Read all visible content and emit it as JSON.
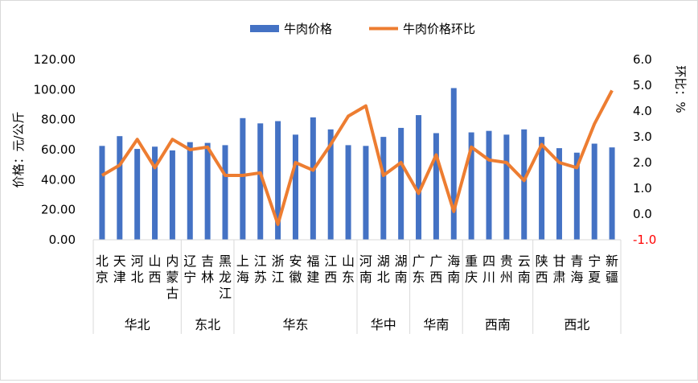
{
  "chart_data": {
    "type": "bar+line",
    "title": "",
    "legend": {
      "placement": "top-center"
    },
    "series": [
      {
        "name": "牛肉价格",
        "type": "bar",
        "axis": "left",
        "color": "#4472C4",
        "values": [
          62.5,
          69,
          60.5,
          62,
          59.5,
          65,
          64.5,
          63,
          81,
          77.5,
          79,
          70,
          81.5,
          73.5,
          63,
          62.5,
          68.5,
          74.5,
          83,
          71,
          101,
          71.5,
          72.5,
          70,
          73.5,
          68.5,
          61,
          58,
          64,
          61.5
        ]
      },
      {
        "name": "牛肉价格环比",
        "type": "line",
        "axis": "right",
        "color": "#ED7D31",
        "values": [
          1.5,
          1.9,
          2.9,
          1.8,
          2.9,
          2.5,
          2.6,
          1.5,
          1.5,
          1.6,
          -0.4,
          2.0,
          1.7,
          2.7,
          3.8,
          4.2,
          1.5,
          2.0,
          0.8,
          2.3,
          0.1,
          2.6,
          2.1,
          2.0,
          1.3,
          2.7,
          2.0,
          1.8,
          3.5,
          4.8
        ]
      }
    ],
    "categories": [
      [
        "北",
        "京"
      ],
      [
        "天",
        "津"
      ],
      [
        "河",
        "北"
      ],
      [
        "山",
        "西"
      ],
      [
        "内",
        "蒙",
        "古"
      ],
      [
        "辽",
        "宁"
      ],
      [
        "吉",
        "林"
      ],
      [
        "黑",
        "龙",
        "江"
      ],
      [
        "上",
        "海"
      ],
      [
        "江",
        "苏"
      ],
      [
        "浙",
        "江"
      ],
      [
        "安",
        "徽"
      ],
      [
        "福",
        "建"
      ],
      [
        "江",
        "西"
      ],
      [
        "山",
        "东"
      ],
      [
        "河",
        "南"
      ],
      [
        "湖",
        "北"
      ],
      [
        "湖",
        "南"
      ],
      [
        "广",
        "东"
      ],
      [
        "广",
        "西"
      ],
      [
        "海",
        "南"
      ],
      [
        "重",
        "庆"
      ],
      [
        "四",
        "川"
      ],
      [
        "贵",
        "州"
      ],
      [
        "云",
        "南"
      ],
      [
        "陕",
        "西"
      ],
      [
        "甘",
        "肃"
      ],
      [
        "青",
        "海"
      ],
      [
        "宁",
        "夏"
      ],
      [
        "新",
        "疆"
      ]
    ],
    "groups": [
      {
        "name": "华北",
        "count": 5
      },
      {
        "name": "东北",
        "count": 3
      },
      {
        "name": "华东",
        "count": 7
      },
      {
        "name": "华中",
        "count": 3
      },
      {
        "name": "华南",
        "count": 3
      },
      {
        "name": "西南",
        "count": 4
      },
      {
        "name": "西北",
        "count": 5
      }
    ],
    "y_left": {
      "label": "价格：元/公斤",
      "min": 0,
      "max": 120,
      "step": 20,
      "tick_labels": [
        "0.00",
        "20.00",
        "40.00",
        "60.00",
        "80.00",
        "100.00",
        "120.00"
      ]
    },
    "y_right": {
      "label": "环比：%",
      "min": -1,
      "max": 6,
      "step": 1,
      "tick_labels": [
        "-1.0",
        "0.0",
        "1.0",
        "2.0",
        "3.0",
        "4.0",
        "5.0",
        "6.0"
      ],
      "negative_color": "#FF0000"
    },
    "grid": false
  }
}
